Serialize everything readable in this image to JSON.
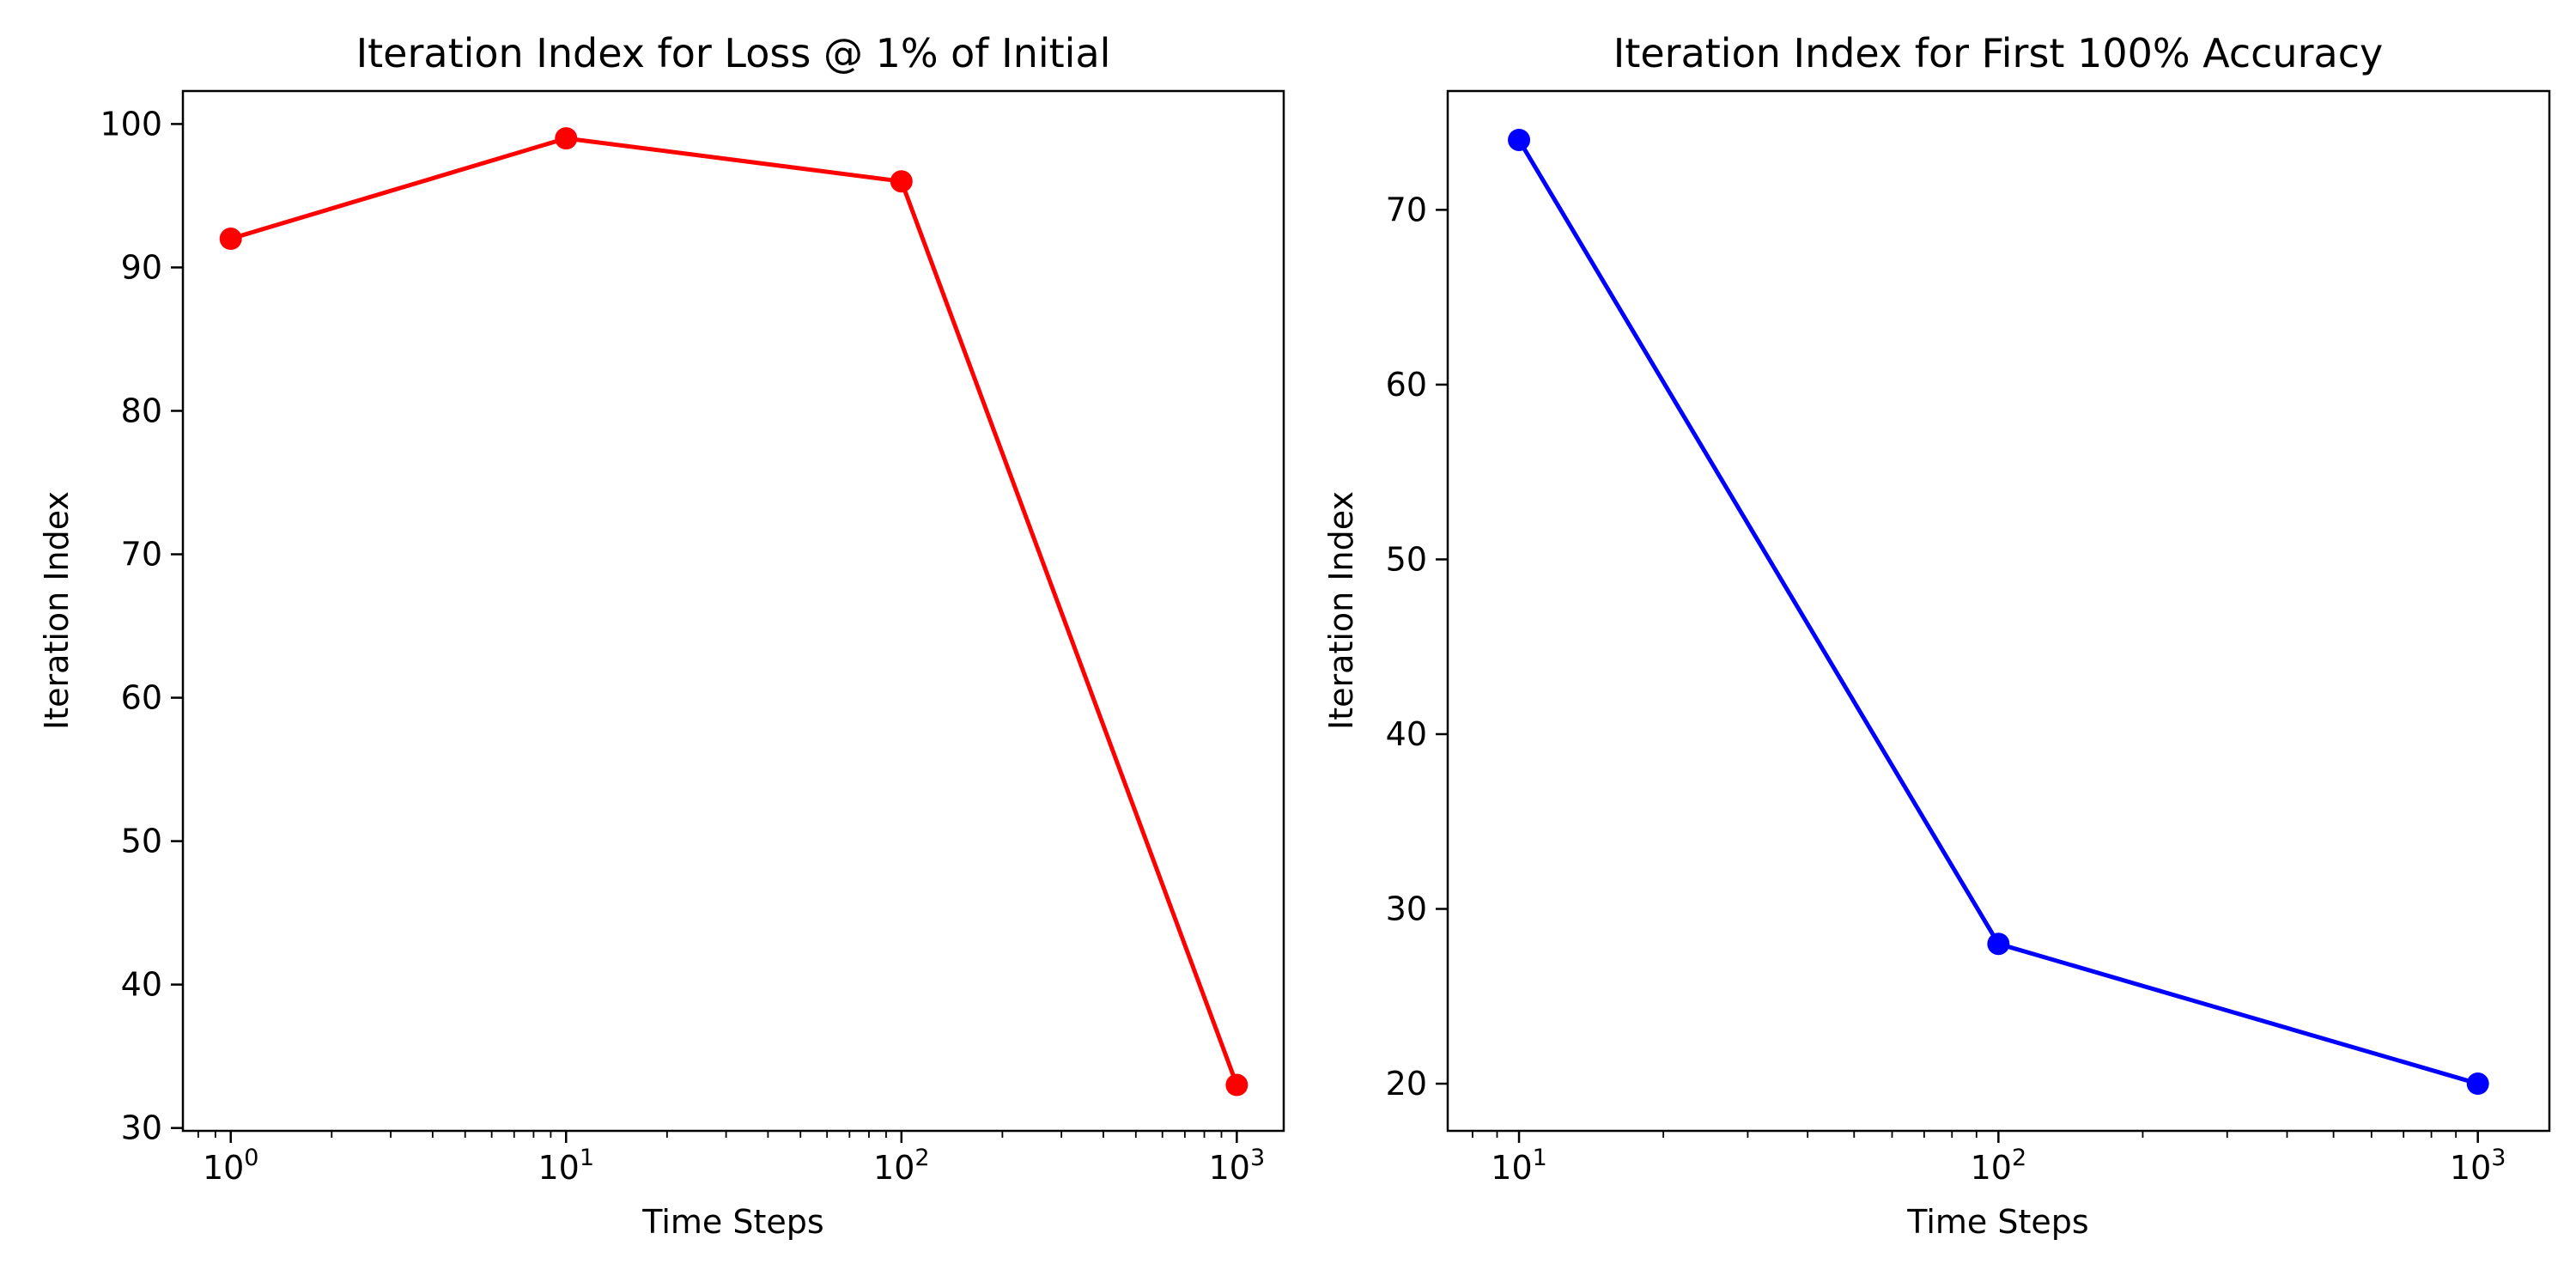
{
  "chart_data": [
    {
      "type": "line",
      "title": "Iteration Index for Loss @ 1% of Initial",
      "xlabel": "Time Steps",
      "ylabel": "Iteration Index",
      "xscale": "log",
      "xlim": [
        0.72,
        1380
      ],
      "ylim": [
        29.8,
        102.3
      ],
      "xticks": [
        1,
        10,
        100,
        1000
      ],
      "xtick_labels": [
        {
          "base": "10",
          "exp": "0"
        },
        {
          "base": "10",
          "exp": "1"
        },
        {
          "base": "10",
          "exp": "2"
        },
        {
          "base": "10",
          "exp": "3"
        }
      ],
      "yticks": [
        30,
        40,
        50,
        60,
        70,
        80,
        90,
        100
      ],
      "ytick_labels": [
        "30",
        "40",
        "50",
        "60",
        "70",
        "80",
        "90",
        "100"
      ],
      "grid": false,
      "series": [
        {
          "x": [
            1,
            10,
            100,
            1000
          ],
          "y": [
            92,
            99,
            96,
            33
          ],
          "color": "#ff0000",
          "marker": "circle"
        }
      ]
    },
    {
      "type": "line",
      "title": "Iteration Index for First 100% Accuracy",
      "xlabel": "Time Steps",
      "ylabel": "Iteration Index",
      "xscale": "log",
      "xlim": [
        7.1,
        1410
      ],
      "ylim": [
        17.3,
        76.8
      ],
      "xticks": [
        10,
        100,
        1000
      ],
      "xtick_labels": [
        {
          "base": "10",
          "exp": "1"
        },
        {
          "base": "10",
          "exp": "2"
        },
        {
          "base": "10",
          "exp": "3"
        }
      ],
      "yticks": [
        20,
        30,
        40,
        50,
        60,
        70
      ],
      "ytick_labels": [
        "20",
        "30",
        "40",
        "50",
        "60",
        "70"
      ],
      "grid": false,
      "series": [
        {
          "x": [
            10,
            100,
            1000
          ],
          "y": [
            74,
            28,
            20
          ],
          "color": "#0000ff",
          "marker": "circle"
        }
      ]
    }
  ]
}
